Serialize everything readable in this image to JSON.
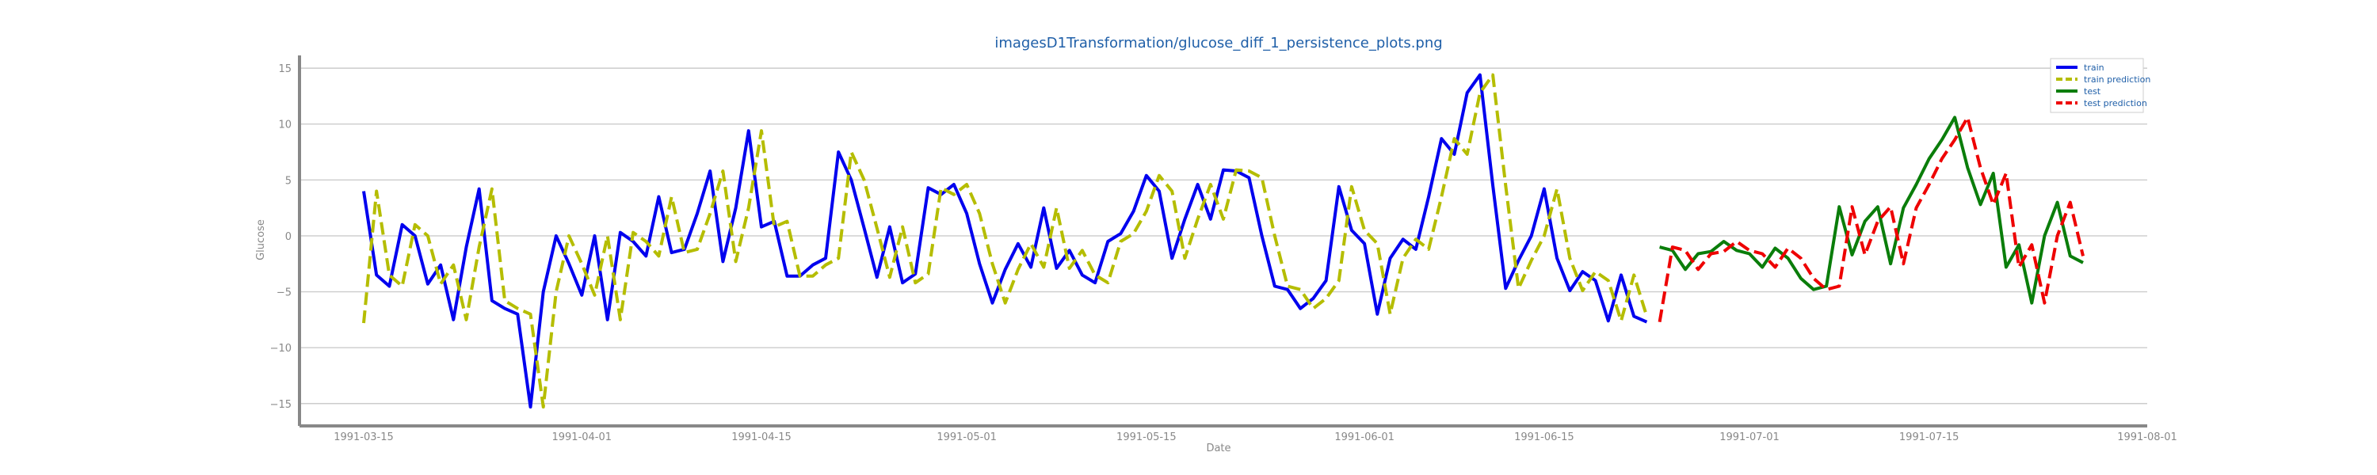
{
  "chart_data": {
    "type": "line",
    "title": "imagesD1Transformation/glucose_diff_1_persistence_plots.png",
    "xlabel": "Date",
    "ylabel": "Glucose",
    "x_start": "1991-03-10",
    "x_end": "1991-08-01",
    "ylim": [
      -17,
      16
    ],
    "yticks": [
      -15,
      -10,
      -5,
      0,
      5,
      10,
      15
    ],
    "xticks": [
      "1991-03-15",
      "1991-04-01",
      "1991-04-15",
      "1991-05-01",
      "1991-05-15",
      "1991-06-01",
      "1991-06-15",
      "1991-07-01",
      "1991-07-15",
      "1991-08-01"
    ],
    "grid": "horizontal",
    "legend_position": "top-right",
    "series": [
      {
        "name": "train",
        "color": "#0000ee",
        "dash": "solid",
        "start": "1991-03-15",
        "values": [
          4.0,
          -3.5,
          -4.5,
          1.0,
          0.0,
          -4.3,
          -2.6,
          -7.5,
          -1.0,
          4.2,
          -5.8,
          -6.5,
          -7.0,
          -15.3,
          -5.0,
          0.0,
          -2.5,
          -5.3,
          0.0,
          -7.5,
          0.3,
          -0.5,
          -1.8,
          3.5,
          -1.5,
          -1.2,
          2.0,
          5.8,
          -2.3,
          2.5,
          9.4,
          0.8,
          1.3,
          -3.6,
          -3.6,
          -2.6,
          -2.0,
          7.5,
          5.0,
          0.7,
          -3.7,
          0.8,
          -4.2,
          -3.4,
          4.3,
          3.7,
          4.6,
          2.0,
          -2.5,
          -6.0,
          -3.0,
          -0.7,
          -2.8,
          2.5,
          -2.9,
          -1.3,
          -3.5,
          -4.2,
          -0.5,
          0.2,
          2.2,
          5.4,
          4.0,
          -2.0,
          1.5,
          4.6,
          1.5,
          5.9,
          5.8,
          5.2,
          0.0,
          -4.5,
          -4.8,
          -6.5,
          -5.6,
          -4.0,
          4.4,
          0.5,
          -0.7,
          -7.0,
          -2.0,
          -0.3,
          -1.2,
          3.5,
          8.7,
          7.3,
          12.8,
          14.4,
          4.5,
          -4.7,
          -2.2,
          0.0,
          4.2,
          -2.0,
          -4.9,
          -3.2,
          -4.0,
          -7.6,
          -3.5,
          -7.2,
          -7.7
        ]
      },
      {
        "name": "train prediction",
        "color": "#b5bd00",
        "dash": "dashed",
        "start": "1991-03-15",
        "values": [
          -7.8,
          4.0,
          -3.5,
          -4.5,
          1.0,
          0.0,
          -4.3,
          -2.6,
          -7.5,
          -1.0,
          4.2,
          -5.8,
          -6.5,
          -7.0,
          -15.3,
          -5.0,
          0.0,
          -2.5,
          -5.3,
          0.0,
          -7.5,
          0.3,
          -0.5,
          -1.8,
          3.5,
          -1.5,
          -1.2,
          2.0,
          5.8,
          -2.3,
          2.5,
          9.4,
          0.8,
          1.3,
          -3.6,
          -3.6,
          -2.6,
          -2.0,
          7.5,
          5.0,
          0.7,
          -3.7,
          0.8,
          -4.2,
          -3.4,
          4.3,
          3.7,
          4.6,
          2.0,
          -2.5,
          -6.0,
          -3.0,
          -0.7,
          -2.8,
          2.5,
          -2.9,
          -1.3,
          -3.5,
          -4.2,
          -0.5,
          0.2,
          2.2,
          5.4,
          4.0,
          -2.0,
          1.5,
          4.6,
          1.5,
          5.9,
          5.8,
          5.2,
          0.0,
          -4.5,
          -4.8,
          -6.5,
          -5.6,
          -4.0,
          4.4,
          0.5,
          -0.7,
          -7.0,
          -2.0,
          -0.3,
          -1.2,
          3.5,
          8.7,
          7.3,
          12.8,
          14.4,
          4.5,
          -4.7,
          -2.2,
          0.0,
          4.2,
          -2.0,
          -4.9,
          -3.2,
          -4.0,
          -7.6,
          -3.5,
          -7.2
        ]
      },
      {
        "name": "test",
        "color": "#0a7d0a",
        "dash": "solid",
        "start": "1991-06-24",
        "values": [
          -1.0,
          -1.3,
          -3.0,
          -1.6,
          -1.4,
          -0.5,
          -1.3,
          -1.6,
          -2.8,
          -1.1,
          -2.0,
          -3.8,
          -4.8,
          -4.5,
          2.6,
          -1.7,
          1.3,
          2.6,
          -2.5,
          2.5,
          4.6,
          6.9,
          8.6,
          10.6,
          6.1,
          2.8,
          5.6,
          -2.8,
          -0.8,
          -6.0,
          0.0,
          3.0,
          -1.8,
          -2.4
        ]
      },
      {
        "name": "test prediction",
        "color": "#ee0000",
        "dash": "dashed",
        "start": "1991-06-24",
        "values": [
          -7.7,
          -1.0,
          -1.3,
          -3.0,
          -1.6,
          -1.4,
          -0.5,
          -1.3,
          -1.6,
          -2.8,
          -1.1,
          -2.0,
          -3.8,
          -4.8,
          -4.5,
          2.6,
          -1.7,
          1.3,
          2.6,
          -2.5,
          2.5,
          4.6,
          6.9,
          8.6,
          10.6,
          6.1,
          2.8,
          5.6,
          -2.8,
          -0.8,
          -6.0,
          0.0,
          3.0,
          -1.8
        ]
      }
    ]
  }
}
